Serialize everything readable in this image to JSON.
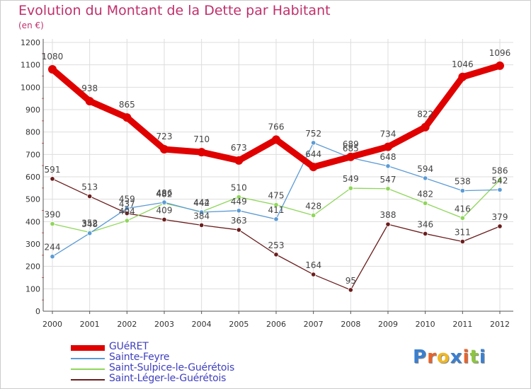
{
  "header": {
    "title": "Evolution du Montant de la Dette par Habitant",
    "unit": "(en €)"
  },
  "logo": {
    "text": "Proxiti",
    "colors": [
      "#3a7fd0",
      "#e8632a",
      "#f0b824",
      "#3a7fd0",
      "#e8632a",
      "#8cc63f",
      "#3a7fd0"
    ]
  },
  "chart_data": {
    "type": "line",
    "title": "Evolution du Montant de la Dette par Habitant",
    "ylabel": "(en €)",
    "ylim": [
      0,
      1200
    ],
    "yticks": [
      0,
      100,
      200,
      300,
      400,
      500,
      600,
      700,
      800,
      900,
      1000,
      1100,
      1200
    ],
    "grid": true,
    "legend_position": "bottom-left",
    "x": [
      "2000",
      "2001",
      "2002",
      "2003",
      "2004",
      "2005",
      "2006",
      "2007",
      "2008",
      "2009",
      "2010",
      "2011",
      "2012"
    ],
    "series": [
      {
        "name": "GUéRET",
        "color": "#e00000",
        "values": [
          1080,
          938,
          865,
          723,
          710,
          673,
          766,
          644,
          689,
          734,
          822,
          1046,
          1096
        ]
      },
      {
        "name": "Sainte-Feyre",
        "color": "#5b9bd5",
        "values": [
          244,
          348,
          459,
          486,
          442,
          449,
          411,
          752,
          685,
          648,
          594,
          538,
          542
        ]
      },
      {
        "name": "Saint-Sulpice-le-Guérétois",
        "color": "#8fd65a",
        "values": [
          390,
          352,
          404,
          482,
          444,
          510,
          475,
          428,
          549,
          547,
          482,
          416,
          586
        ]
      },
      {
        "name": "Saint-Léger-le-Guérétois",
        "color": "#6b1d1d",
        "values": [
          591,
          513,
          437,
          409,
          384,
          363,
          253,
          164,
          95,
          388,
          346,
          311,
          379
        ]
      }
    ],
    "point_labels": [
      [
        1080,
        938,
        865,
        723,
        710,
        673,
        766,
        644,
        689,
        734,
        822,
        1046,
        1096
      ],
      [
        244,
        348,
        459,
        486,
        442,
        449,
        411,
        752,
        685,
        648,
        594,
        538,
        542
      ],
      [
        390,
        352,
        404,
        482,
        444,
        510,
        475,
        428,
        549,
        547,
        482,
        416,
        586
      ],
      [
        591,
        513,
        437,
        409,
        384,
        363,
        253,
        164,
        95,
        388,
        346,
        311,
        379
      ]
    ]
  }
}
